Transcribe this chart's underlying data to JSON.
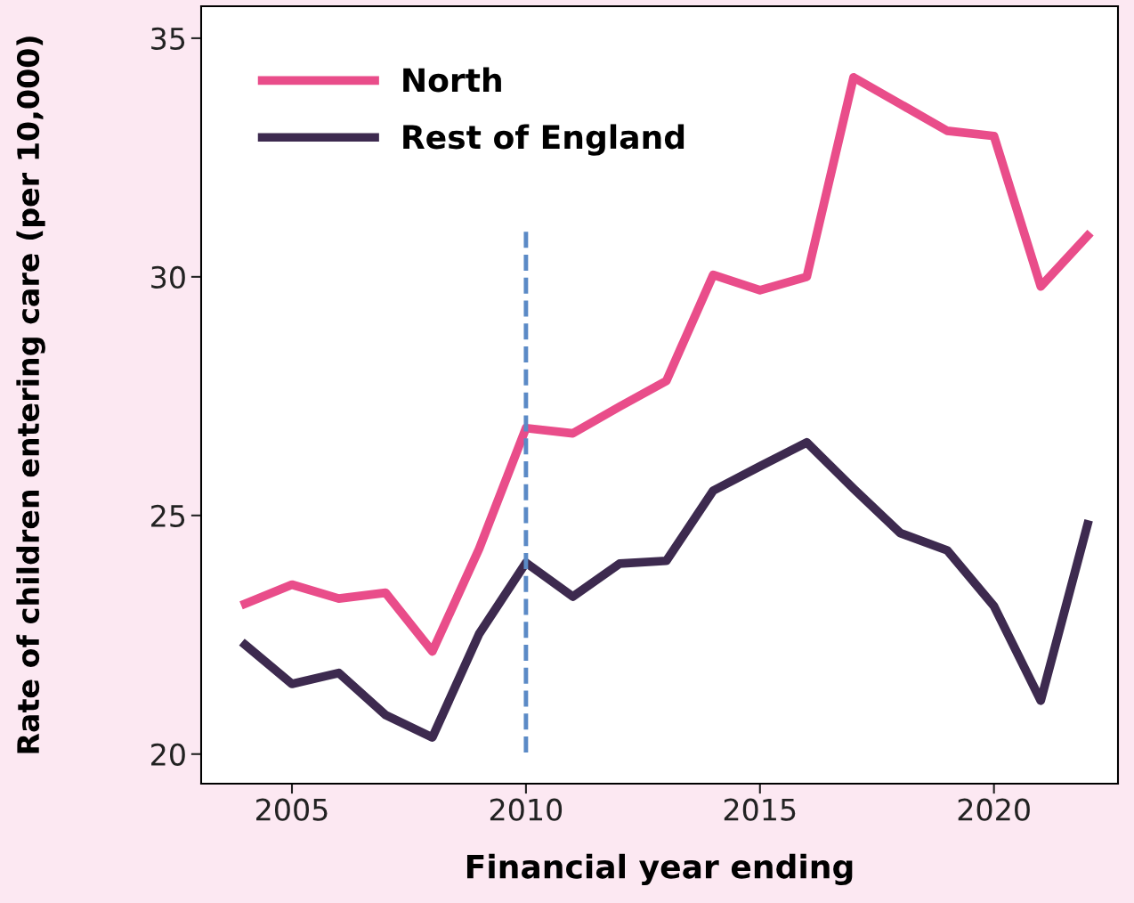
{
  "chart_data": {
    "type": "line",
    "xlabel": "Financial year ending",
    "ylabel": "Rate of children entering care (per 10,000)",
    "x": [
      2004,
      2005,
      2006,
      2007,
      2008,
      2009,
      2010,
      2011,
      2012,
      2013,
      2014,
      2015,
      2016,
      2017,
      2018,
      2019,
      2020,
      2021,
      2022
    ],
    "series": [
      {
        "name": "North",
        "color": "#e94d8a",
        "values": [
          23.15,
          23.55,
          23.26,
          23.38,
          22.15,
          24.3,
          26.83,
          26.72,
          27.28,
          27.82,
          30.04,
          29.72,
          30.0,
          34.18,
          33.62,
          33.06,
          32.95,
          29.8,
          30.86
        ]
      },
      {
        "name": "Rest of England",
        "color": "#3d2a4f",
        "values": [
          22.29,
          21.47,
          21.7,
          20.82,
          20.35,
          22.52,
          24.01,
          23.3,
          23.99,
          24.05,
          25.52,
          26.03,
          26.53,
          25.56,
          24.63,
          24.27,
          23.1,
          21.12,
          24.81
        ]
      }
    ],
    "xlim": [
      2003.06,
      2022.65
    ],
    "xticks": [
      2005,
      2010,
      2015,
      2020
    ],
    "ylim": [
      19.38,
      35.67
    ],
    "yticks": [
      20,
      25,
      30,
      35
    ],
    "ref_lines": [
      {
        "axis": "x",
        "value": 2010,
        "color": "#5b8ac6",
        "line_style": "dashed"
      }
    ],
    "legend": "top left",
    "grid": false,
    "marker": "none",
    "line_style": "solid"
  }
}
